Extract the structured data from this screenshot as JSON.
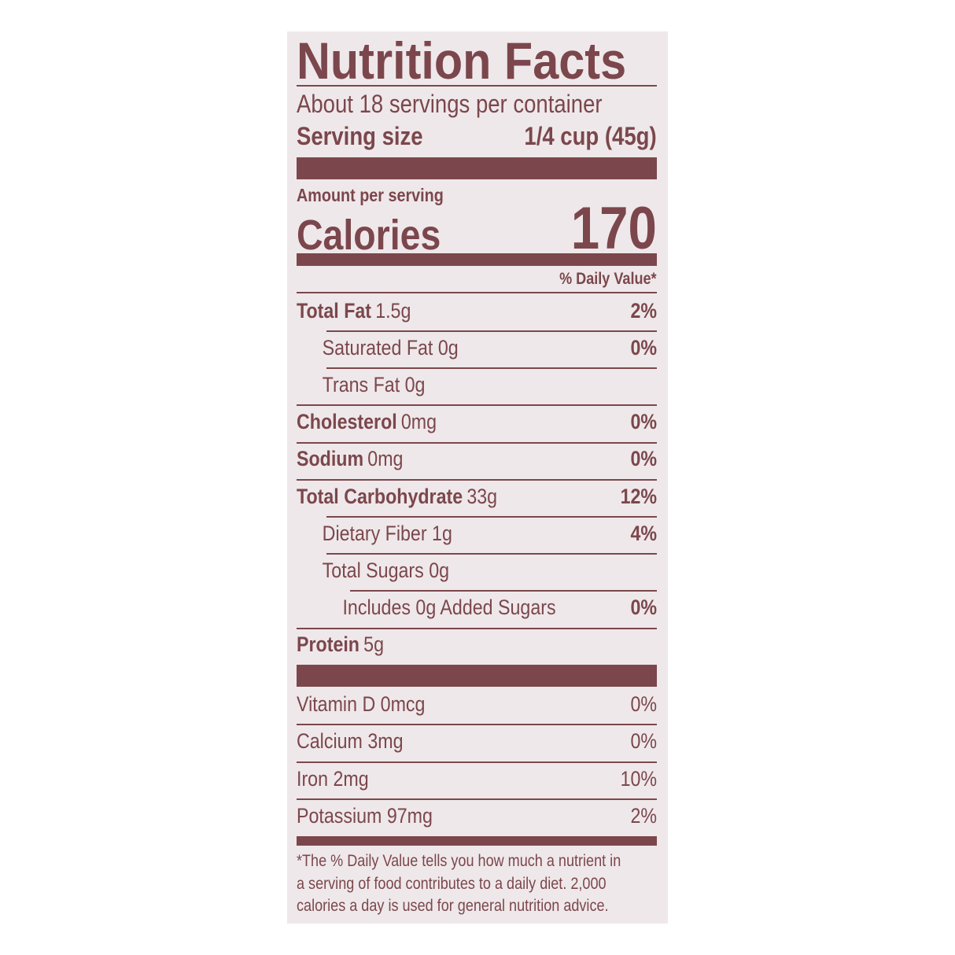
{
  "label": {
    "title": "Nutrition Facts",
    "servings_per_container": "About 18 servings per container",
    "serving_size_label": "Serving size",
    "serving_size_value": "1/4 cup (45g)",
    "amount_per_serving": "Amount per serving",
    "calories_label": "Calories",
    "calories_value": "170",
    "daily_value_header": "% Daily Value*",
    "nutrients": [
      {
        "name": "Total Fat",
        "amount": "1.5g",
        "dv": "2%"
      },
      {
        "name": "Saturated Fat 0g",
        "amount": "",
        "dv": "0%"
      },
      {
        "name": "Trans Fat 0g",
        "amount": "",
        "dv": ""
      },
      {
        "name": "Cholesterol",
        "amount": "0mg",
        "dv": "0%"
      },
      {
        "name": "Sodium",
        "amount": "0mg",
        "dv": "0%"
      },
      {
        "name": "Total Carbohydrate",
        "amount": "33g",
        "dv": "12%"
      },
      {
        "name": "Dietary Fiber 1g",
        "amount": "",
        "dv": "4%"
      },
      {
        "name": "Total Sugars 0g",
        "amount": "",
        "dv": ""
      },
      {
        "name": "Includes 0g Added Sugars",
        "amount": "",
        "dv": "0%"
      },
      {
        "name": "Protein",
        "amount": "5g",
        "dv": ""
      }
    ],
    "vitamins": [
      {
        "name": "Vitamin D 0mcg",
        "dv": "0%"
      },
      {
        "name": "Calcium 3mg",
        "dv": "0%"
      },
      {
        "name": "Iron 2mg",
        "dv": "10%"
      },
      {
        "name": "Potassium 97mg",
        "dv": "2%"
      }
    ],
    "footnote": [
      "*The % Daily Value tells you how much a nutrient in",
      "a serving of food contributes to a daily diet. 2,000",
      "calories a day is used for general nutrition advice."
    ]
  },
  "colors": {
    "ink": "#7b474c",
    "background": "#efe8ea"
  }
}
